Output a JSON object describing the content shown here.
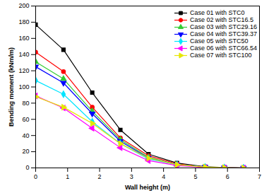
{
  "chart_data": {
    "type": "line",
    "x_label": "Wall height (m)",
    "y_label": "Bending moment (kNm/m)",
    "xlim": [
      0,
      7
    ],
    "xticks": [
      0,
      1,
      2,
      3,
      4,
      5,
      6,
      7
    ],
    "ylim": [
      0,
      200
    ],
    "yticks": [
      0,
      20,
      40,
      60,
      80,
      100,
      120,
      140,
      160,
      180,
      200
    ],
    "legend": "top-right",
    "x": [
      0,
      0.87,
      1.77,
      2.65,
      3.53,
      4.42,
      5.3,
      5.9,
      6.5
    ],
    "series": [
      {
        "name": "Case 01 with STC0",
        "color": "#000000",
        "marker": "square",
        "values": [
          177,
          146,
          93,
          47,
          17,
          6,
          1.5,
          0.5,
          0
        ]
      },
      {
        "name": "Case 02 with STC16.5",
        "color": "#ff0000",
        "marker": "circle",
        "values": [
          143,
          119,
          75,
          37,
          15,
          5,
          1,
          0.3,
          0
        ]
      },
      {
        "name": "Case 03 with STC29.16",
        "color": "#33cc33",
        "marker": "triangle",
        "values": [
          131,
          110,
          70,
          35,
          13,
          4,
          1,
          0.3,
          0
        ]
      },
      {
        "name": "Case 04 with STC39.37",
        "color": "#0000ff",
        "marker": "triangle-down",
        "values": [
          125,
          105,
          67,
          33,
          12,
          4,
          1,
          0.3,
          0
        ]
      },
      {
        "name": "Case 05 with STC50",
        "color": "#00e5ff",
        "marker": "diamond",
        "values": [
          108,
          91,
          57,
          30,
          11,
          4,
          1,
          0.2,
          0
        ]
      },
      {
        "name": "Case 06 with STC66.54",
        "color": "#ff00ff",
        "marker": "triangle-left",
        "values": [
          89,
          74,
          49,
          25,
          9,
          3,
          0.5,
          0.2,
          0
        ]
      },
      {
        "name": "Case 07 with STC100",
        "color": "#e6e600",
        "marker": "triangle-right",
        "values": [
          88,
          75,
          55,
          30,
          12,
          4,
          1,
          0.3,
          0
        ]
      }
    ]
  }
}
